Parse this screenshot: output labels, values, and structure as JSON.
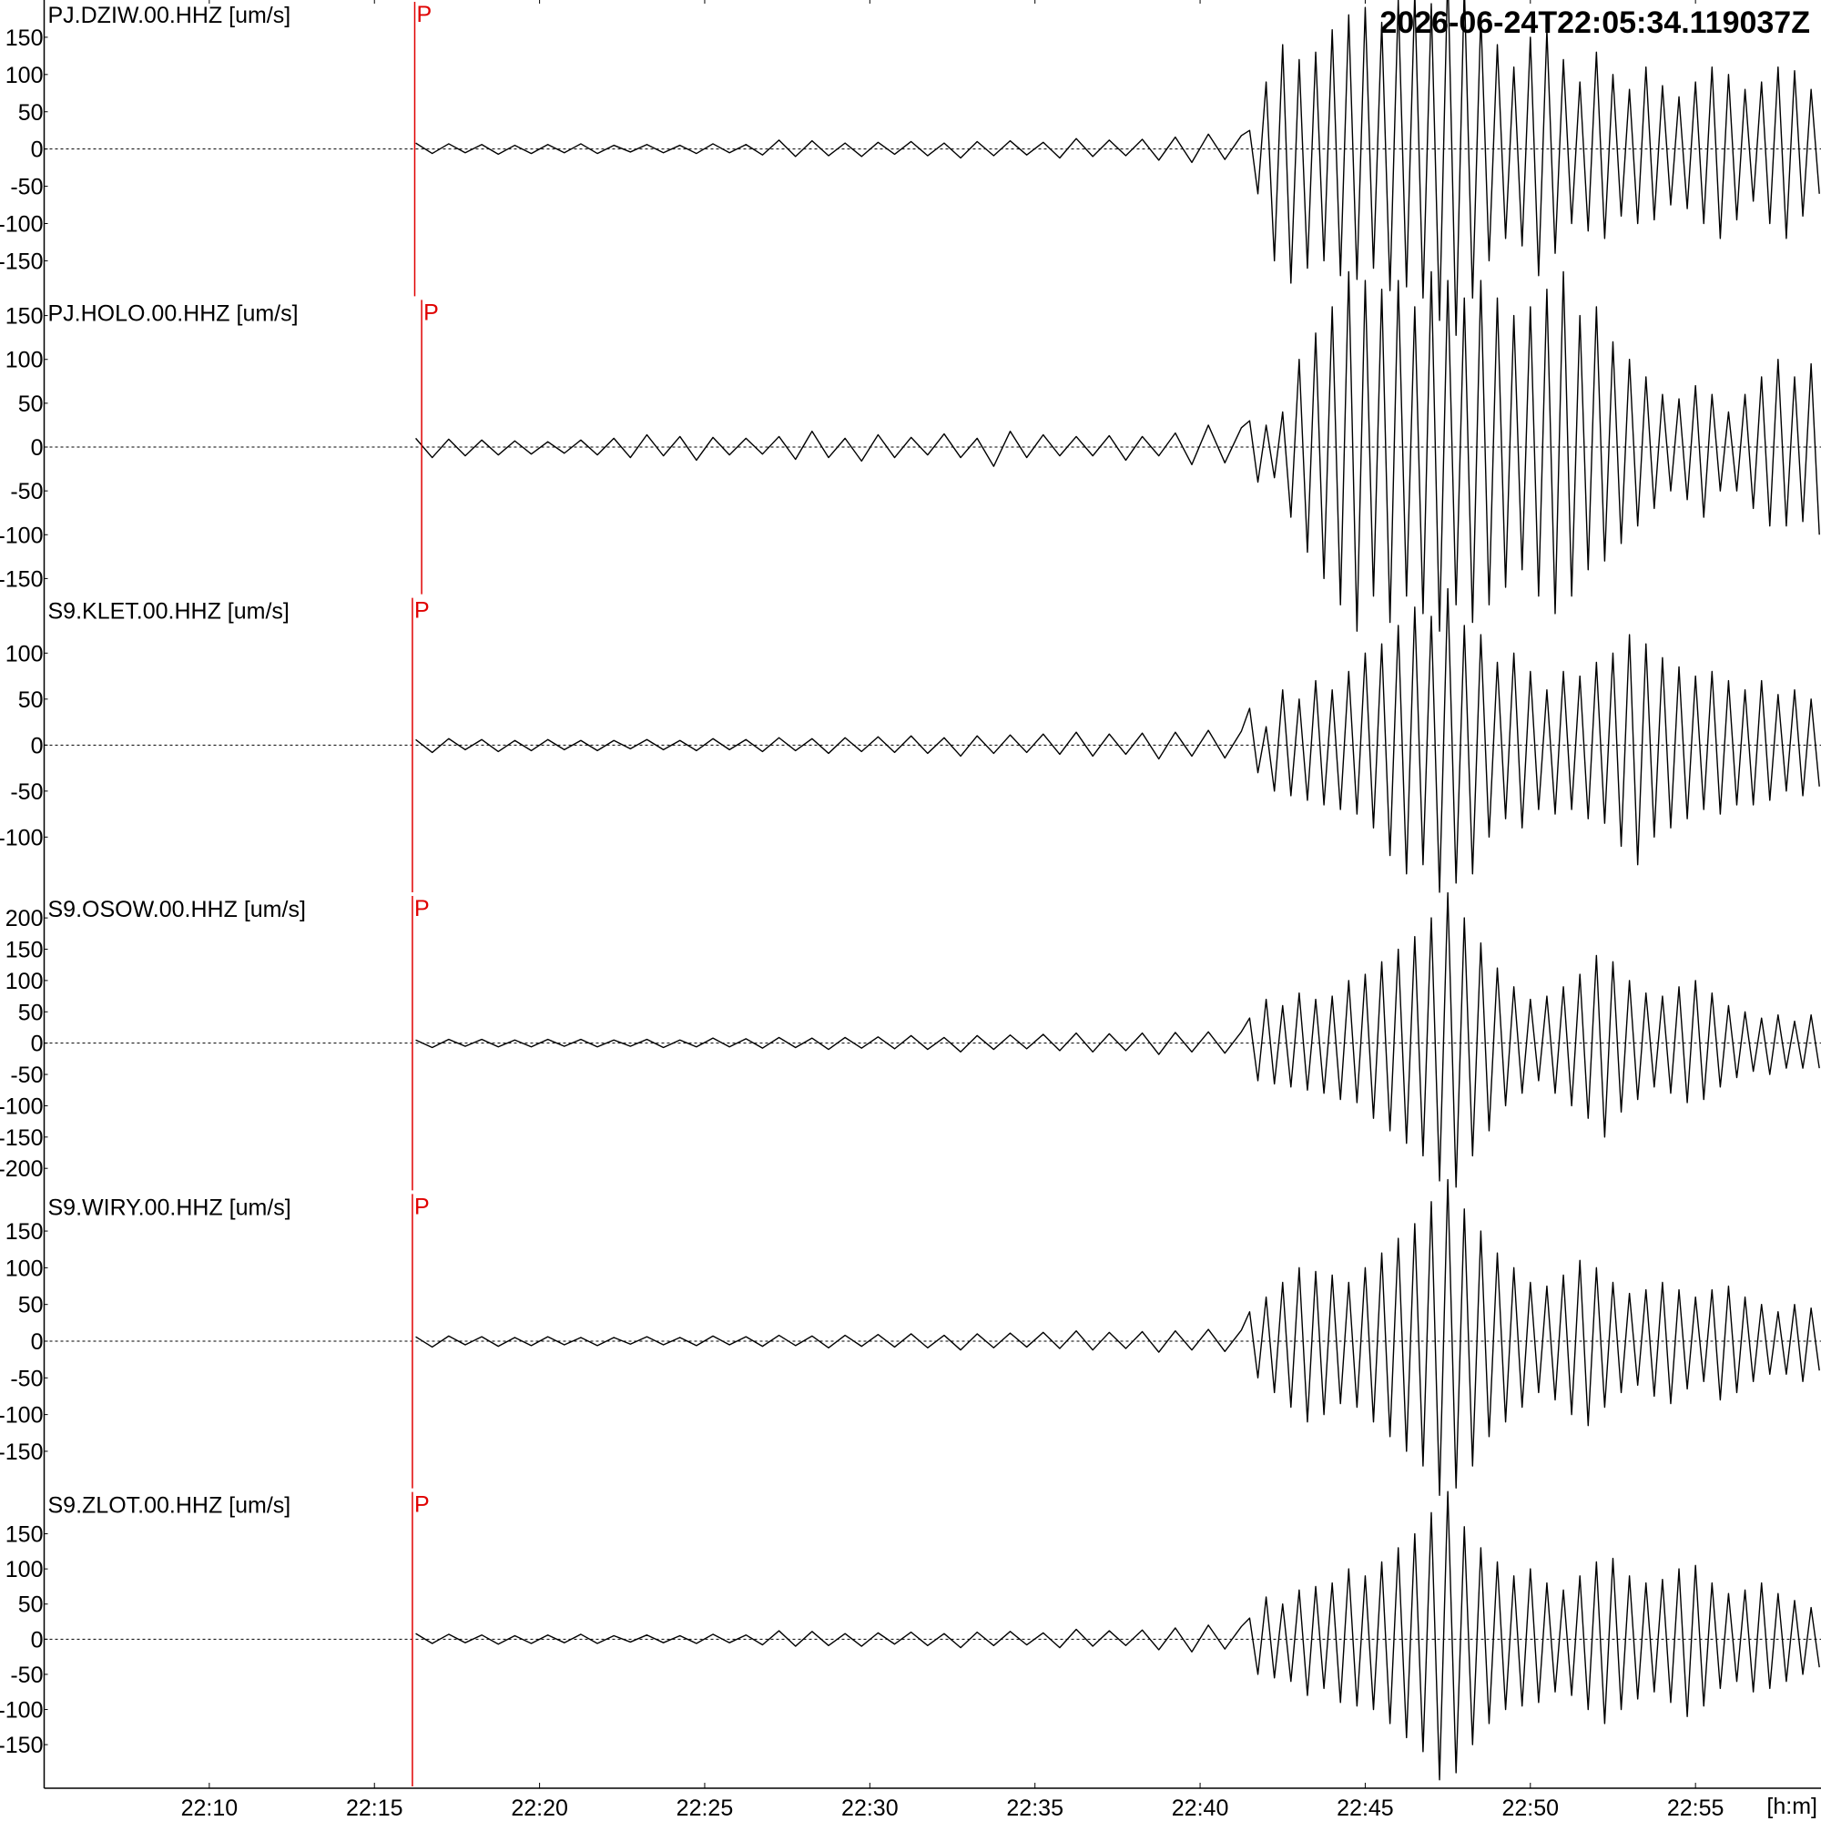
{
  "chart_data": {
    "type": "line",
    "start_time": "2026-06-24T22:05:34.119037Z",
    "xlabel": "[h:m]",
    "xlim": [
      5.0,
      58.8
    ],
    "xticks": [
      {
        "value": 10,
        "label": "22:10"
      },
      {
        "value": 15,
        "label": "22:15"
      },
      {
        "value": 20,
        "label": "22:20"
      },
      {
        "value": 25,
        "label": "22:25"
      },
      {
        "value": 30,
        "label": "22:30"
      },
      {
        "value": 35,
        "label": "22:35"
      },
      {
        "value": 40,
        "label": "22:40"
      },
      {
        "value": 45,
        "label": "22:45"
      },
      {
        "value": 50,
        "label": "22:50"
      },
      {
        "value": 55,
        "label": "22:55"
      }
    ],
    "color": "#000000",
    "pick_color": "#e00000",
    "x": [
      16.25,
      16.75,
      17.25,
      17.75,
      18.25,
      18.75,
      19.25,
      19.75,
      20.25,
      20.75,
      21.25,
      21.75,
      22.25,
      22.75,
      23.25,
      23.75,
      24.25,
      24.75,
      25.25,
      25.75,
      26.25,
      26.75,
      27.25,
      27.75,
      28.25,
      28.75,
      29.25,
      29.75,
      30.25,
      30.75,
      31.25,
      31.75,
      32.25,
      32.75,
      33.25,
      33.75,
      34.25,
      34.75,
      35.25,
      35.75,
      36.25,
      36.75,
      37.25,
      37.75,
      38.25,
      38.75,
      39.25,
      39.75,
      40.25,
      40.75,
      41.25,
      41.5,
      41.75,
      42,
      42.25,
      42.5,
      42.75,
      43,
      43.25,
      43.5,
      43.75,
      44,
      44.25,
      44.5,
      44.75,
      45,
      45.25,
      45.5,
      45.75,
      46,
      46.25,
      46.5,
      46.75,
      47,
      47.25,
      47.5,
      47.75,
      48,
      48.25,
      48.5,
      48.75,
      49,
      49.25,
      49.5,
      49.75,
      50,
      50.25,
      50.5,
      50.75,
      51,
      51.25,
      51.5,
      51.75,
      52,
      52.25,
      52.5,
      52.75,
      53,
      53.25,
      53.5,
      53.75,
      54,
      54.25,
      54.5,
      54.75,
      55,
      55.25,
      55.5,
      55.75,
      56,
      56.25,
      56.5,
      56.75,
      57,
      57.25,
      57.5,
      57.75,
      58,
      58.25,
      58.5,
      58.75
    ],
    "panels": [
      {
        "title": "PJ.DZIW.00.HHZ [um/s]",
        "ylim": [
          -200,
          200
        ],
        "yticks": [
          -150,
          -100,
          -50,
          0,
          50,
          100,
          150
        ],
        "pick": {
          "label": "P",
          "x": 16.22
        },
        "values": [
          8,
          -6,
          7,
          -5,
          6,
          -7,
          5,
          -6,
          6,
          -5,
          7,
          -6,
          5,
          -4,
          6,
          -5,
          5,
          -6,
          7,
          -5,
          6,
          -8,
          12,
          -10,
          11,
          -9,
          8,
          -10,
          9,
          -7,
          10,
          -9,
          8,
          -12,
          10,
          -9,
          11,
          -8,
          9,
          -12,
          14,
          -10,
          12,
          -9,
          13,
          -15,
          16,
          -18,
          20,
          -14,
          18,
          25,
          -60,
          90,
          -150,
          140,
          -180,
          120,
          -160,
          130,
          -150,
          160,
          -170,
          180,
          -175,
          190,
          -160,
          170,
          -190,
          200,
          -185,
          210,
          -200,
          195,
          -230,
          240,
          -250,
          220,
          -200,
          180,
          -150,
          140,
          -120,
          110,
          -130,
          150,
          -170,
          160,
          -140,
          120,
          -100,
          90,
          -110,
          130,
          -120,
          100,
          -90,
          80,
          -100,
          110,
          -95,
          85,
          -75,
          70,
          -80,
          90,
          -100,
          110,
          -120,
          100,
          -95,
          80,
          -70,
          90,
          -100,
          110,
          -120,
          105,
          -90,
          80,
          -60
        ]
      },
      {
        "title": "PJ.HOLO.00.HHZ [um/s]",
        "ylim": [
          -170,
          170
        ],
        "yticks": [
          -150,
          -100,
          -50,
          0,
          50,
          100,
          150
        ],
        "pick": {
          "label": "P",
          "x": 16.43
        },
        "values": [
          10,
          -12,
          9,
          -10,
          8,
          -9,
          7,
          -8,
          6,
          -7,
          8,
          -9,
          10,
          -12,
          14,
          -10,
          12,
          -15,
          11,
          -9,
          10,
          -8,
          12,
          -14,
          18,
          -12,
          10,
          -16,
          14,
          -12,
          11,
          -9,
          15,
          -12,
          10,
          -22,
          18,
          -12,
          14,
          -10,
          12,
          -10,
          13,
          -15,
          12,
          -10,
          16,
          -20,
          25,
          -18,
          22,
          30,
          -40,
          25,
          -35,
          40,
          -80,
          100,
          -120,
          130,
          -150,
          160,
          -180,
          200,
          -210,
          190,
          -170,
          180,
          -200,
          190,
          -170,
          160,
          -190,
          200,
          -210,
          190,
          -180,
          170,
          -200,
          190,
          -180,
          170,
          -160,
          150,
          -140,
          160,
          -170,
          180,
          -190,
          200,
          -170,
          150,
          -140,
          160,
          -130,
          120,
          -110,
          100,
          -90,
          80,
          -70,
          60,
          -50,
          55,
          -60,
          70,
          -80,
          60,
          -50,
          40,
          -50,
          60,
          -70,
          80,
          -90,
          100,
          -90,
          80,
          -85,
          95,
          -100
        ]
      },
      {
        "title": "S9.KLET.00.HHZ [um/s]",
        "ylim": [
          -162,
          162
        ],
        "yticks": [
          -100,
          -50,
          0,
          50,
          100
        ],
        "pick": {
          "label": "P",
          "x": 16.15
        },
        "values": [
          6,
          -8,
          7,
          -5,
          6,
          -7,
          5,
          -6,
          6,
          -5,
          5,
          -6,
          5,
          -4,
          6,
          -5,
          5,
          -6,
          7,
          -5,
          6,
          -7,
          8,
          -6,
          7,
          -9,
          8,
          -7,
          9,
          -8,
          10,
          -9,
          8,
          -12,
          10,
          -9,
          11,
          -8,
          12,
          -10,
          14,
          -12,
          12,
          -10,
          13,
          -15,
          14,
          -12,
          16,
          -14,
          15,
          40,
          -30,
          20,
          -50,
          60,
          -55,
          50,
          -60,
          70,
          -65,
          60,
          -70,
          80,
          -75,
          100,
          -90,
          110,
          -120,
          130,
          -140,
          150,
          -130,
          140,
          -160,
          170,
          -150,
          130,
          -140,
          120,
          -100,
          90,
          -80,
          100,
          -90,
          80,
          -70,
          60,
          -75,
          80,
          -70,
          75,
          -80,
          90,
          -85,
          100,
          -110,
          120,
          -130,
          110,
          -100,
          95,
          -90,
          85,
          -80,
          75,
          -70,
          80,
          -75,
          70,
          -65,
          60,
          -65,
          70,
          -60,
          55,
          -50,
          60,
          -55,
          50,
          -45
        ]
      },
      {
        "title": "S9.OSOW.00.HHZ [um/s]",
        "ylim": [
          -238,
          238
        ],
        "yticks": [
          -200,
          -150,
          -100,
          -50,
          0,
          50,
          100,
          150,
          200
        ],
        "pick": {
          "label": "P",
          "x": 16.15
        },
        "values": [
          5,
          -7,
          6,
          -5,
          6,
          -6,
          5,
          -6,
          6,
          -5,
          6,
          -6,
          5,
          -5,
          6,
          -7,
          5,
          -6,
          8,
          -6,
          7,
          -8,
          9,
          -7,
          8,
          -10,
          9,
          -8,
          10,
          -9,
          12,
          -10,
          9,
          -14,
          12,
          -10,
          13,
          -9,
          14,
          -12,
          16,
          -14,
          15,
          -12,
          16,
          -18,
          17,
          -14,
          18,
          -16,
          18,
          40,
          -60,
          70,
          -65,
          60,
          -70,
          80,
          -75,
          70,
          -80,
          75,
          -90,
          100,
          -95,
          110,
          -120,
          130,
          -140,
          150,
          -160,
          170,
          -180,
          200,
          -220,
          240,
          -230,
          200,
          -180,
          160,
          -140,
          120,
          -100,
          90,
          -80,
          70,
          -60,
          75,
          -80,
          90,
          -100,
          110,
          -120,
          140,
          -150,
          130,
          -110,
          100,
          -90,
          80,
          -70,
          75,
          -80,
          90,
          -95,
          100,
          -90,
          80,
          -70,
          60,
          -55,
          50,
          -45,
          40,
          -50,
          45,
          -40,
          35,
          -40,
          45,
          -40
        ]
      },
      {
        "title": "S9.WIRY.00.HHZ [um/s]",
        "ylim": [
          -203,
          203
        ],
        "yticks": [
          -150,
          -100,
          -50,
          0,
          50,
          100,
          150
        ],
        "pick": {
          "label": "P",
          "x": 16.15
        },
        "values": [
          6,
          -8,
          7,
          -5,
          6,
          -7,
          5,
          -6,
          6,
          -5,
          5,
          -6,
          5,
          -4,
          6,
          -5,
          5,
          -6,
          7,
          -5,
          6,
          -7,
          8,
          -6,
          7,
          -9,
          8,
          -7,
          9,
          -8,
          10,
          -9,
          8,
          -12,
          10,
          -9,
          11,
          -8,
          12,
          -10,
          14,
          -12,
          12,
          -10,
          13,
          -15,
          14,
          -12,
          16,
          -14,
          15,
          40,
          -50,
          60,
          -70,
          80,
          -90,
          100,
          -110,
          95,
          -100,
          90,
          -85,
          80,
          -90,
          100,
          -110,
          120,
          -130,
          140,
          -150,
          160,
          -170,
          190,
          -210,
          220,
          -200,
          180,
          -170,
          150,
          -130,
          120,
          -110,
          100,
          -90,
          80,
          -70,
          75,
          -80,
          90,
          -100,
          110,
          -115,
          100,
          -90,
          80,
          -70,
          65,
          -60,
          70,
          -75,
          80,
          -85,
          70,
          -65,
          60,
          -55,
          70,
          -80,
          75,
          -70,
          60,
          -55,
          50,
          -45,
          40,
          -45,
          50,
          -55,
          45,
          -40
        ]
      },
      {
        "title": "S9.ZLOT.00.HHZ [um/s]",
        "ylim": [
          -212,
          212
        ],
        "yticks": [
          -150,
          -100,
          -50,
          0,
          50,
          100,
          150
        ],
        "pick": {
          "label": "P",
          "x": 16.15
        },
        "values": [
          8,
          -6,
          7,
          -5,
          6,
          -7,
          5,
          -6,
          6,
          -5,
          7,
          -6,
          5,
          -4,
          6,
          -5,
          5,
          -6,
          7,
          -5,
          6,
          -8,
          12,
          -10,
          11,
          -9,
          8,
          -10,
          9,
          -7,
          10,
          -9,
          8,
          -12,
          10,
          -9,
          11,
          -8,
          9,
          -12,
          14,
          -10,
          12,
          -9,
          13,
          -15,
          16,
          -18,
          20,
          -14,
          18,
          30,
          -50,
          60,
          -55,
          50,
          -60,
          70,
          -80,
          75,
          -70,
          80,
          -90,
          100,
          -95,
          90,
          -100,
          110,
          -120,
          130,
          -140,
          150,
          -160,
          180,
          -200,
          210,
          -190,
          160,
          -150,
          130,
          -120,
          110,
          -100,
          90,
          -95,
          100,
          -90,
          80,
          -75,
          70,
          -80,
          90,
          -100,
          110,
          -120,
          115,
          -100,
          90,
          -85,
          80,
          -75,
          85,
          -90,
          100,
          -110,
          105,
          -95,
          80,
          -70,
          65,
          -60,
          70,
          -75,
          80,
          -70,
          65,
          -60,
          55,
          -50,
          45,
          -40
        ]
      }
    ]
  }
}
